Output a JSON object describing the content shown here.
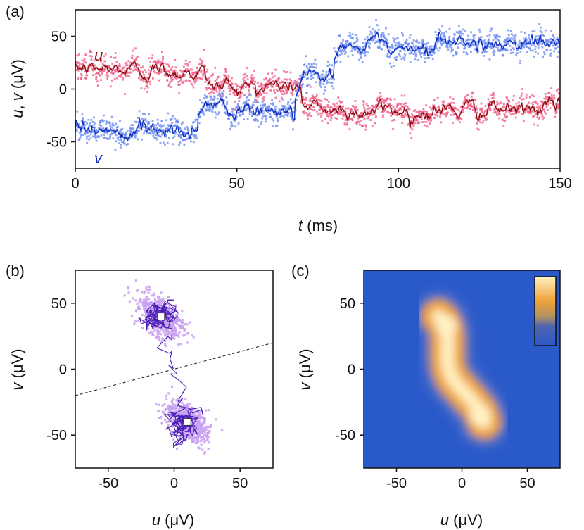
{
  "chart_data": [
    {
      "panel": "(a)",
      "type": "line",
      "xlabel_italic": "t",
      "xlabel_unit": " (ms)",
      "ylabel_italic_1": "u",
      "ylabel_sep": ", ",
      "ylabel_italic_2": "v",
      "ylabel_unit": " (μV)",
      "xlim": [
        0,
        150
      ],
      "ylim": [
        -75,
        75
      ],
      "xticks": [
        0,
        50,
        100,
        150
      ],
      "yticks": [
        -50,
        0,
        50
      ],
      "xtick_labels": [
        "0",
        "50",
        "100",
        "150"
      ],
      "ytick_labels": [
        "-50",
        "0",
        "50"
      ],
      "zero_line": "dashed",
      "series": [
        {
          "name": "u",
          "raw_color": "#f0608a",
          "smooth_color": "#8b1010",
          "segments": [
            {
              "t_start": 0,
              "t_end": 40,
              "level": 18
            },
            {
              "t_start": 40,
              "t_end": 70,
              "level": 3
            },
            {
              "t_start": 70,
              "t_end": 150,
              "level": -20
            }
          ]
        },
        {
          "name": "v",
          "raw_color": "#6f8df2",
          "smooth_color": "#1030c0",
          "segments": [
            {
              "t_start": 0,
              "t_end": 38,
              "level": -40
            },
            {
              "t_start": 38,
              "t_end": 68,
              "level": -20
            },
            {
              "t_start": 68,
              "t_end": 80,
              "level": 15
            },
            {
              "t_start": 80,
              "t_end": 150,
              "level": 42
            }
          ]
        }
      ]
    },
    {
      "panel": "(b)",
      "type": "scatter",
      "xlabel_italic": "u",
      "xlabel_unit": " (μV)",
      "ylabel_italic": "v",
      "ylabel_unit": " (μV)",
      "xlim": [
        -75,
        75
      ],
      "ylim": [
        -75,
        75
      ],
      "xticks": [
        -50,
        0,
        50
      ],
      "yticks": [
        -50,
        0,
        50
      ],
      "xtick_labels": [
        "-50",
        "0",
        "50"
      ],
      "ytick_labels": [
        "-50",
        "0",
        "50"
      ],
      "clusters": [
        {
          "center": [
            -10,
            40
          ]
        },
        {
          "center": [
            10,
            -40
          ]
        }
      ],
      "divider_line": {
        "from": [
          -75,
          -20
        ],
        "to": [
          75,
          20
        ],
        "style": "dashed"
      },
      "point_color": "#c9a1f0",
      "trace_color": "#4a1fb8"
    },
    {
      "panel": "(c)",
      "type": "heatmap",
      "xlabel_italic": "u",
      "xlabel_unit": " (μV)",
      "ylabel_italic": "v",
      "ylabel_unit": " (μV)",
      "xlim": [
        -75,
        75
      ],
      "ylim": [
        -75,
        75
      ],
      "xticks": [
        -50,
        0,
        50
      ],
      "yticks": [
        -50,
        0,
        50
      ],
      "xtick_labels": [
        "-50",
        "0",
        "50"
      ],
      "ytick_labels": [
        "-50",
        "0",
        "50"
      ],
      "background_color": "#2a59c9",
      "high_color": "#fff2c4",
      "mid_color": "#f0a33a",
      "colorbar": true
    }
  ]
}
